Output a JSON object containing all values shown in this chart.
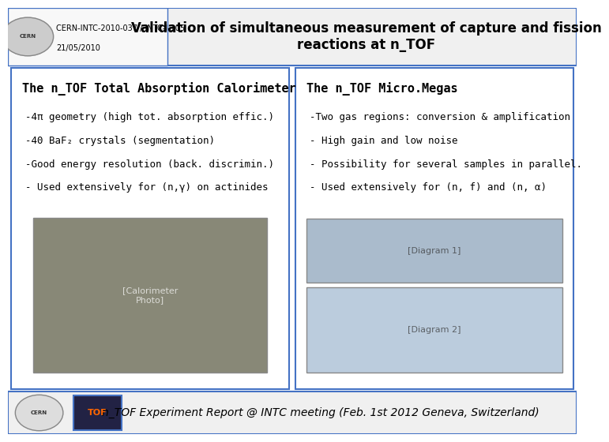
{
  "header_left_text1": "CERN-INTC-2010-037 / INTC-I-105",
  "header_left_text2": "21/05/2010",
  "header_title": "Validation of simultaneous measurement of capture and fission\nreactions at n_TOF",
  "left_panel_title": "The n_TOF Total Absorption Calorimeter",
  "left_panel_bullets": [
    "-4π geometry (high tot. absorption effic.)",
    "-40 BaF₂ crystals (segmentation)",
    "-Good energy resolution (back. discrimin.)",
    "- Used extensively for (n,γ) on actinides"
  ],
  "right_panel_title": "The n_TOF Micro.Megas",
  "right_panel_bullets": [
    "-Two gas regions: conversion & amplification",
    "- High gain and low noise",
    "- Possibility for several samples in parallel.",
    "- Used extensively for (n, f) and (n, α)"
  ],
  "footer_text": "n_TOF Experiment Report @ INTC meeting (Feb. 1st 2012 Geneva, Switzerland)",
  "bg_color": "#ffffff",
  "header_bg": "#ffffff",
  "panel_border_color": "#4472c4",
  "header_border_color": "#4472c4",
  "footer_border_color": "#4472c4",
  "title_color": "#000000",
  "text_color": "#000000",
  "header_text_color": "#000000",
  "title_fontsize": 11,
  "bullet_fontsize": 9,
  "footer_fontsize": 10
}
